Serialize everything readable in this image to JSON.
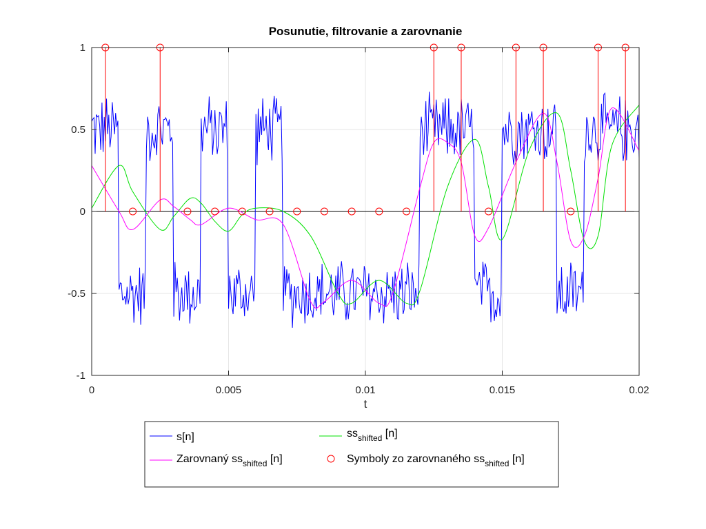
{
  "chart_data": {
    "type": "line",
    "title": "Posunutie, filtrovanie a zarovnanie",
    "xlabel": "t",
    "ylabel": "",
    "xlim": [
      0,
      0.02
    ],
    "ylim": [
      -1,
      1
    ],
    "xticks": [
      0,
      0.005,
      0.01,
      0.015,
      0.02
    ],
    "xtick_labels": [
      "0",
      "0.005",
      "0.01",
      "0.015",
      "0.02"
    ],
    "yticks": [
      -1,
      -0.5,
      0,
      0.5,
      1
    ],
    "ytick_labels": [
      "-1",
      "-0.5",
      "0",
      "0.5",
      "1"
    ],
    "grid": true,
    "legend_placement": "below",
    "series": [
      {
        "name": "s[n]",
        "name_base": "s[n]",
        "name_sub": "",
        "name_tail": "",
        "color": "#0000ff",
        "style": "noisy-square",
        "levels": [
          0.5,
          -0.5,
          0.5,
          -0.5,
          0.5,
          -0.5,
          0.5,
          -0.5,
          -0.5,
          -0.5,
          -0.5,
          -0.5,
          0.5,
          0.5,
          -0.5,
          0.5,
          0.5,
          -0.5,
          0.5,
          0.5
        ],
        "segment_duration": 0.001,
        "noise_amplitude": 0.2
      },
      {
        "name": "ss_shifted [n]",
        "name_base": "ss",
        "name_sub": "shifted",
        "name_tail": " [n]",
        "color": "#00e000",
        "x": [
          0,
          0.001,
          0.0015,
          0.0025,
          0.003,
          0.0036,
          0.004,
          0.0045,
          0.005,
          0.0055,
          0.006,
          0.007,
          0.008,
          0.009,
          0.0095,
          0.0105,
          0.0115,
          0.012,
          0.013,
          0.014,
          0.0145,
          0.015,
          0.016,
          0.017,
          0.0175,
          0.018,
          0.0185,
          0.019,
          0.02
        ],
        "y": [
          0.02,
          0.28,
          0.12,
          -0.11,
          -0.03,
          0.08,
          0.05,
          -0.06,
          -0.12,
          -0.02,
          0.02,
          0.0,
          -0.15,
          -0.5,
          -0.56,
          -0.42,
          -0.56,
          -0.48,
          0.15,
          0.44,
          0.15,
          -0.17,
          0.38,
          0.6,
          0.25,
          -0.18,
          -0.15,
          0.4,
          0.65
        ]
      },
      {
        "name": "Zarovnaný ss_shifted [n]",
        "name_base": "Zarovnaný ss",
        "name_sub": "shifted",
        "name_tail": " [n]",
        "color": "#ff00ff",
        "x": [
          0,
          0.001,
          0.0015,
          0.0025,
          0.003,
          0.0036,
          0.004,
          0.005,
          0.006,
          0.007,
          0.008,
          0.0085,
          0.0095,
          0.0105,
          0.011,
          0.012,
          0.0125,
          0.013,
          0.0135,
          0.014,
          0.0145,
          0.0155,
          0.0165,
          0.017,
          0.0175,
          0.018,
          0.0185,
          0.019,
          0.02
        ],
        "y": [
          0.28,
          0.0,
          -0.11,
          0.07,
          0.03,
          -0.05,
          -0.08,
          0.02,
          -0.05,
          -0.08,
          -0.55,
          -0.55,
          -0.42,
          -0.56,
          -0.5,
          0.15,
          0.42,
          0.42,
          0.3,
          -0.15,
          -0.1,
          0.3,
          0.6,
          0.3,
          -0.18,
          -0.15,
          0.2,
          0.63,
          0.37
        ]
      },
      {
        "name": "Symboly zo zarovnaného ss_shifted [n]",
        "name_base": "Symboly zo zarovnaného ss",
        "name_sub": "shifted",
        "name_tail": " [n]",
        "color": "#ff0000",
        "type": "stem",
        "x": [
          0.0005,
          0.0015,
          0.0025,
          0.0035,
          0.0045,
          0.0055,
          0.0065,
          0.0075,
          0.0085,
          0.0095,
          0.0105,
          0.0115,
          0.0125,
          0.0135,
          0.0145,
          0.0155,
          0.0165,
          0.0175,
          0.0185,
          0.0195
        ],
        "y": [
          1,
          0,
          1,
          0,
          0,
          0,
          0,
          0,
          0,
          0,
          0,
          0,
          1,
          1,
          0,
          1,
          1,
          0,
          1,
          1
        ]
      }
    ]
  }
}
